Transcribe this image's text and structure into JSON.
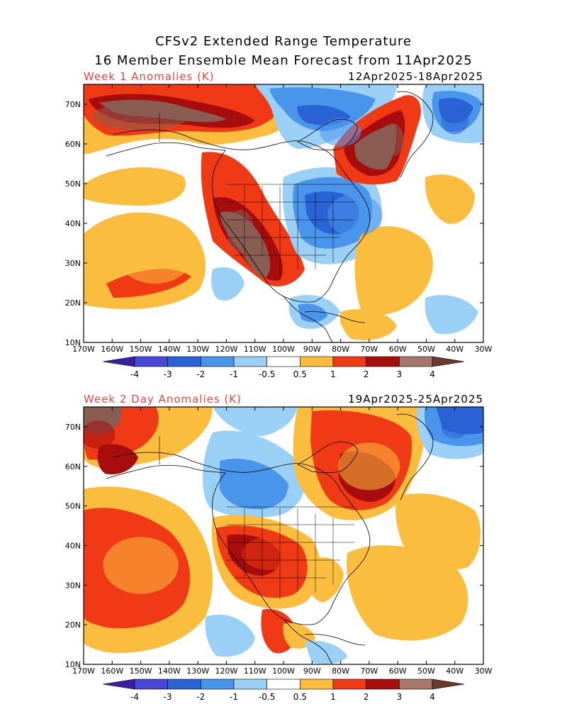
{
  "title_line1": "CFSv2 Extended Range Temperature",
  "title_line2": "16 Member Ensemble Mean Forecast from 11Apr2025",
  "panels": [
    {
      "label": "Week 1 Anomalies (K)",
      "date_range": "12Apr2025-18Apr2025",
      "features": [
        {
          "lon": -150,
          "lat": 67,
          "rx": 28,
          "ry": 6,
          "level": "4"
        },
        {
          "lon": -115,
          "lat": 38,
          "rx": 8,
          "ry": 9,
          "level": "4"
        },
        {
          "lon": -62,
          "lat": 61,
          "rx": 7,
          "ry": 7,
          "level": "4"
        },
        {
          "lon": -80,
          "lat": 63,
          "rx": 12,
          "ry": 6,
          "level": "-1"
        },
        {
          "lon": -75,
          "lat": 42,
          "rx": 16,
          "ry": 9,
          "level": "-1"
        },
        {
          "lon": -40,
          "lat": 66,
          "rx": 8,
          "ry": 6,
          "level": "-2"
        },
        {
          "lon": -145,
          "lat": 32,
          "rx": 22,
          "ry": 12,
          "level": "0.5"
        },
        {
          "lon": -60,
          "lat": 30,
          "rx": 15,
          "ry": 10,
          "level": "0.5"
        }
      ]
    },
    {
      "label": "Week 2 Day Anomalies (K)",
      "date_range": "19Apr2025-25Apr2025",
      "features": [
        {
          "lon": -165,
          "lat": 68,
          "rx": 10,
          "ry": 6,
          "level": "3"
        },
        {
          "lon": -105,
          "lat": 38,
          "rx": 16,
          "ry": 7,
          "level": "2"
        },
        {
          "lon": -70,
          "lat": 60,
          "rx": 18,
          "ry": 10,
          "level": "1"
        },
        {
          "lon": -40,
          "lat": 70,
          "rx": 8,
          "ry": 5,
          "level": "-2"
        },
        {
          "lon": -110,
          "lat": 55,
          "rx": 20,
          "ry": 5,
          "level": "-1"
        },
        {
          "lon": -150,
          "lat": 35,
          "rx": 22,
          "ry": 12,
          "level": "1"
        },
        {
          "lon": -60,
          "lat": 30,
          "rx": 16,
          "ry": 10,
          "level": "0.5"
        }
      ]
    }
  ],
  "lon_labels": [
    "170W",
    "160W",
    "150W",
    "140W",
    "130W",
    "120W",
    "110W",
    "100W",
    "90W",
    "80W",
    "70W",
    "60W",
    "50W",
    "40W",
    "30W"
  ],
  "lat_labels": [
    "70N",
    "60N",
    "50N",
    "40N",
    "30N",
    "20N",
    "10N"
  ],
  "colorbar": {
    "labels": [
      "-4",
      "-3",
      "-2",
      "-1",
      "-0.5",
      "0.5",
      "1",
      "2",
      "3",
      "4"
    ],
    "colors": [
      "#3a1fa6",
      "#4a47d8",
      "#2a63d6",
      "#4a95ec",
      "#9bd0f6",
      "#ffffff",
      "#fbbd3e",
      "#f03a16",
      "#a70d0d",
      "#a6776a",
      "#6a3a2c"
    ],
    "level_colors": {
      "-4": "#3a1fa6",
      "-3": "#4a47d8",
      "-2": "#2a63d6",
      "-1": "#4a95ec",
      "-0.5": "#9bd0f6",
      "0.5": "#fbbd3e",
      "1": "#fbbd3e",
      "2": "#f03a16",
      "3": "#a70d0d",
      "4": "#8a5d52"
    }
  }
}
